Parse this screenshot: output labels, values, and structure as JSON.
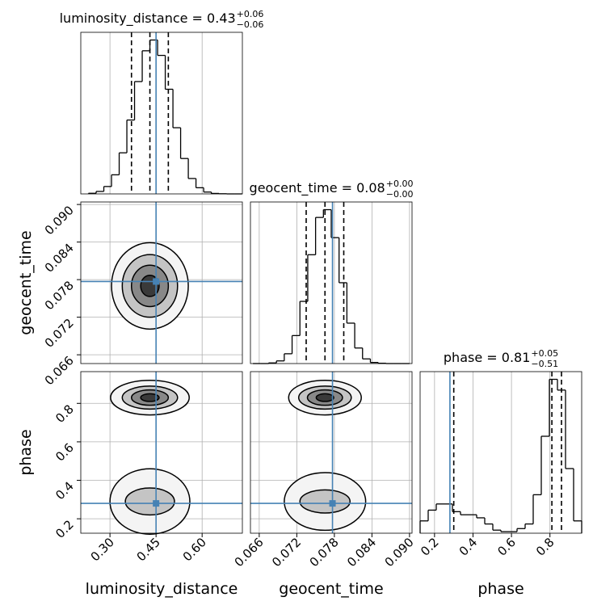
{
  "chart_data": {
    "type": "corner",
    "grid": true,
    "color": "#000000",
    "truth_color": "#4682b4",
    "shade_colors": [
      "#f4f4f4",
      "#c4c4c4",
      "#888888",
      "#3a3a3a"
    ],
    "parameters": [
      {
        "name": "luminosity_distance",
        "title": {
          "text": "luminosity_distance = 0.43",
          "plus": "+0.06",
          "minus": "−0.06"
        },
        "lim": [
          0.205,
          0.731
        ],
        "ticks": [
          {
            "value": 0.3,
            "label": "0.30"
          },
          0.45,
          {
            "value": 0.6,
            "label": "0.60"
          }
        ],
        "truth": 0.45,
        "quantiles": [
          0.37,
          0.43,
          0.49
        ],
        "bins": [
          0.23,
          0.255,
          0.28,
          0.305,
          0.33,
          0.355,
          0.38,
          0.405,
          0.43,
          0.455,
          0.48,
          0.505,
          0.53,
          0.555,
          0.58,
          0.605,
          0.63,
          0.655,
          0.68,
          0.705,
          0.73
        ],
        "counts": [
          4,
          16,
          48,
          124,
          267,
          480,
          730,
          930,
          1000,
          900,
          680,
          430,
          230,
          100,
          40,
          12,
          3,
          1,
          0,
          0
        ]
      },
      {
        "name": "geocent_time",
        "title": {
          "text": "geocent_time = 0.08",
          "plus": "+0.00",
          "minus": "−0.00"
        },
        "lim": [
          0.0646,
          0.0904
        ],
        "ticks": [
          0.066,
          0.072,
          0.078,
          0.084,
          {
            "value": 0.09,
            "label": "0.090"
          }
        ],
        "truth": 0.0777,
        "quantiles": [
          0.0735,
          0.0765,
          0.0795
        ],
        "bins": [
          0.065,
          0.06625,
          0.0675,
          0.06875,
          0.07,
          0.07125,
          0.0725,
          0.07375,
          0.075,
          0.07625,
          0.0775,
          0.07875,
          0.08,
          0.08125,
          0.0825,
          0.08375,
          0.085,
          0.08625,
          0.0875,
          0.08875,
          0.09
        ],
        "counts": [
          0,
          0,
          4,
          17,
          63,
          180,
          400,
          700,
          940,
          990,
          810,
          520,
          260,
          100,
          30,
          7,
          2,
          0,
          0,
          0
        ]
      },
      {
        "name": "phase",
        "title": {
          "text": "phase = 0.81",
          "plus": "+0.05",
          "minus": "−0.51"
        },
        "lim": [
          0.125,
          0.965
        ],
        "ticks": [
          0.2,
          0.4,
          0.6,
          0.8
        ],
        "truth": 0.28,
        "quantiles": [
          0.3,
          0.81,
          0.86
        ],
        "bins": [
          0.125,
          0.167,
          0.209,
          0.251,
          0.293,
          0.335,
          0.377,
          0.419,
          0.461,
          0.503,
          0.545,
          0.587,
          0.629,
          0.671,
          0.713,
          0.755,
          0.797,
          0.839,
          0.881,
          0.923,
          0.965
        ],
        "counts": [
          80,
          150,
          190,
          190,
          140,
          120,
          120,
          100,
          60,
          20,
          10,
          10,
          30,
          60,
          250,
          630,
          1000,
          930,
          420,
          80
        ]
      }
    ],
    "contours": [
      {
        "x": 0,
        "y": 1,
        "blobs": [
          {
            "cx": 0.43,
            "cy": 0.077,
            "levels": [
              {
                "rx": 0.125,
                "ry": 0.0069
              },
              {
                "rx": 0.09,
                "ry": 0.005
              },
              {
                "rx": 0.06,
                "ry": 0.0033
              },
              {
                "rx": 0.03,
                "ry": 0.0017
              }
            ]
          }
        ]
      },
      {
        "x": 0,
        "y": 2,
        "blobs": [
          {
            "cx": 0.43,
            "cy": 0.83,
            "levels": [
              {
                "rx": 0.128,
                "ry": 0.09
              },
              {
                "rx": 0.09,
                "ry": 0.06
              },
              {
                "rx": 0.06,
                "ry": 0.04
              },
              {
                "rx": 0.03,
                "ry": 0.02
              }
            ]
          },
          {
            "cx": 0.43,
            "cy": 0.29,
            "levels": [
              {
                "rx": 0.13,
                "ry": 0.17
              },
              {
                "rx": 0.08,
                "ry": 0.07
              }
            ]
          }
        ]
      },
      {
        "x": 1,
        "y": 2,
        "blobs": [
          {
            "cx": 0.0765,
            "cy": 0.83,
            "levels": [
              {
                "rx": 0.0058,
                "ry": 0.09
              },
              {
                "rx": 0.0042,
                "ry": 0.06
              },
              {
                "rx": 0.0028,
                "ry": 0.04
              },
              {
                "rx": 0.0014,
                "ry": 0.02
              }
            ]
          },
          {
            "cx": 0.0765,
            "cy": 0.29,
            "levels": [
              {
                "rx": 0.0065,
                "ry": 0.15
              },
              {
                "rx": 0.004,
                "ry": 0.06
              }
            ]
          }
        ]
      }
    ]
  }
}
